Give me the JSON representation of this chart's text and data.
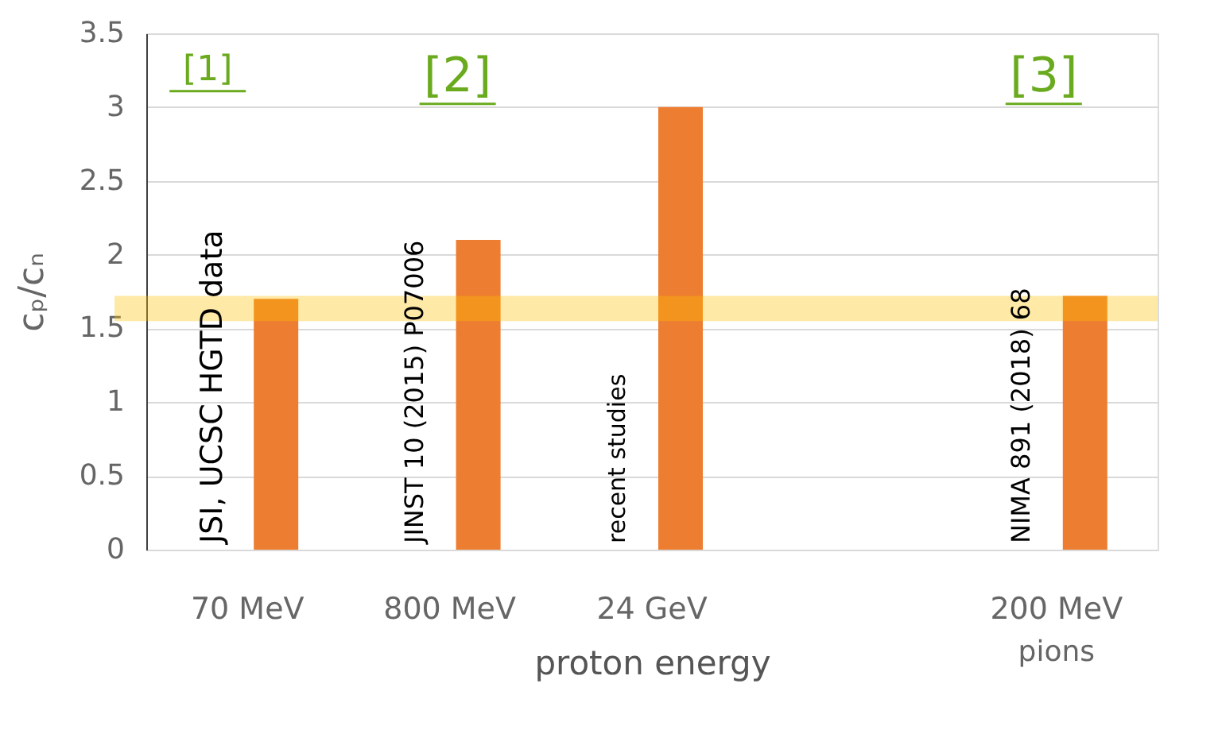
{
  "chart_data": {
    "type": "bar",
    "xlabel": "proton energy",
    "ylabel": "cₚ/cₙ",
    "categories": [
      "70 MeV",
      "800 MeV",
      "24 GeV",
      null,
      "200 MeV"
    ],
    "values": [
      1.7,
      2.1,
      3.0,
      null,
      1.72
    ],
    "color": "#ed7d31",
    "ylim": [
      0,
      3.5
    ],
    "yticks": [
      0,
      0.5,
      1,
      1.5,
      2,
      2.5,
      3,
      3.5
    ],
    "grid": "y",
    "bands": [
      {
        "axis": "y",
        "from": 1.55,
        "to": 1.72,
        "color": "#ffc000"
      }
    ],
    "annotations": [
      "[1]",
      "[2]",
      "[3]",
      "JSI, UCSC HGTD data",
      "JINST 10 (2015) P07006",
      "recent studies",
      "NIMA 891 (2018)  68",
      "pions"
    ]
  }
}
